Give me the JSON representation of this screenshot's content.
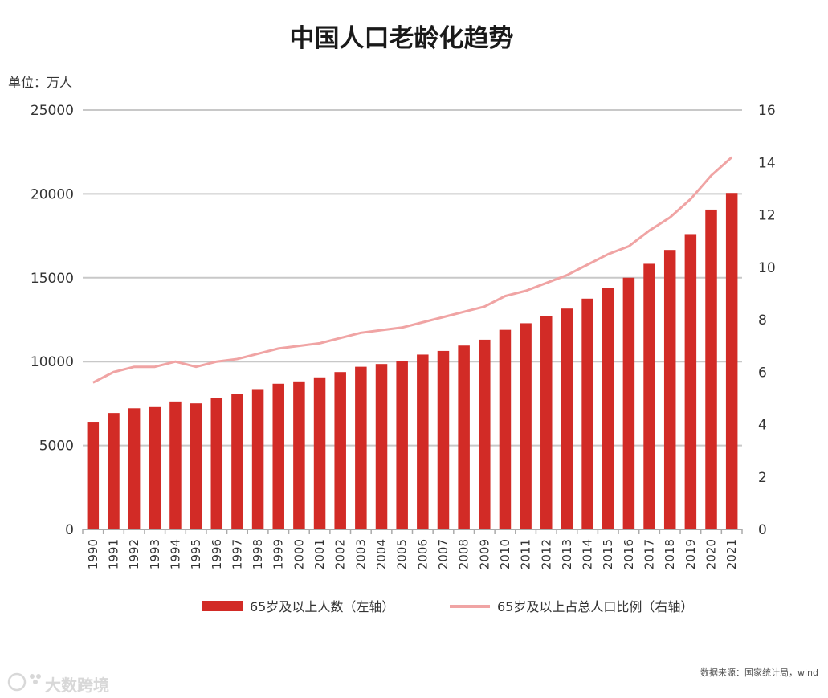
{
  "chart_data": {
    "type": "bar",
    "title": "中国人口老龄化趋势",
    "unit_label": "单位：万人",
    "categories": [
      "1990",
      "1991",
      "1992",
      "1993",
      "1994",
      "1995",
      "1996",
      "1997",
      "1998",
      "1999",
      "2000",
      "2001",
      "2002",
      "2003",
      "2004",
      "2005",
      "2006",
      "2007",
      "2008",
      "2009",
      "2010",
      "2011",
      "2012",
      "2013",
      "2014",
      "2015",
      "2016",
      "2017",
      "2018",
      "2019",
      "2020",
      "2021"
    ],
    "series": [
      {
        "name": "65岁及以上人数（左轴）",
        "type": "bar",
        "axis": "left",
        "color": "#d22b26",
        "values": [
          6368,
          6938,
          7218,
          7289,
          7622,
          7510,
          7833,
          8085,
          8359,
          8679,
          8821,
          9062,
          9377,
          9692,
          9857,
          10055,
          10419,
          10636,
          10956,
          11307,
          11894,
          12288,
          12714,
          13161,
          13755,
          14386,
          15003,
          15831,
          16658,
          17603,
          19064,
          20056
        ]
      },
      {
        "name": "65岁及以上占总人口比例（右轴）",
        "type": "line",
        "axis": "right",
        "color": "#f0a4a4",
        "values": [
          5.6,
          6.0,
          6.2,
          6.2,
          6.4,
          6.2,
          6.4,
          6.5,
          6.7,
          6.9,
          7.0,
          7.1,
          7.3,
          7.5,
          7.6,
          7.7,
          7.9,
          8.1,
          8.3,
          8.5,
          8.9,
          9.1,
          9.4,
          9.7,
          10.1,
          10.5,
          10.8,
          11.4,
          11.9,
          12.6,
          13.5,
          14.2
        ]
      }
    ],
    "ylim_left": [
      0,
      25000
    ],
    "yticks_left": [
      0,
      5000,
      10000,
      15000,
      20000,
      25000
    ],
    "ylim_right": [
      0,
      16
    ],
    "yticks_right": [
      0,
      2,
      4,
      6,
      8,
      10,
      12,
      14,
      16
    ],
    "grid": true,
    "legend_position": "bottom"
  },
  "source_note": "数据来源：国家统计局，wind",
  "watermark": {
    "text": "大数跨境"
  },
  "colors": {
    "bar": "#d22b26",
    "line": "#f0a4a4",
    "grid": "#c8c8c8"
  }
}
